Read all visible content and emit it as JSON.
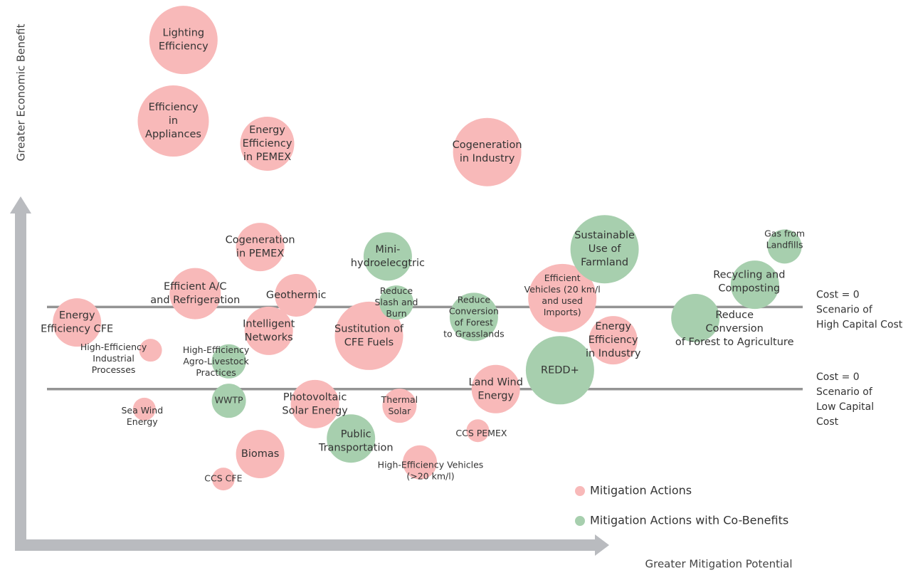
{
  "chart_data": {
    "type": "bubble",
    "x_label": "Greater Mitigation Potential",
    "y_label": "Greater Economic Benefit",
    "xlim": [
      0,
      100
    ],
    "ylim": [
      0,
      100
    ],
    "series": [
      {
        "name": "Mitigation Actions",
        "color": "#f8b9b9",
        "labels": [
          "Lighting\nEfficiency",
          "Efficiency\nin\nAppliances",
          "Energy\nEfficiency\nin PEMEX",
          "Cogeneration\nin Industry",
          "Cogeneration\nin PEMEX",
          "Efficient A/C\nand Refrigeration",
          "Geothermic",
          "Efficient\nVehicles (20 km/l\nand used\nImports)",
          "Energy\nEfficiency CFE",
          "Intelligent\nNetworks",
          "Sustitution of\nCFE Fuels",
          "Energy\nEfficiency\nin Industry",
          "High-Efficiency\nIndustrial\nProcesses",
          "Land Wind\nEnergy",
          "Photovoltaic\nSolar Energy",
          "Thermal\nSolar",
          "Sea Wind\nEnergy",
          "CCS PEMEX",
          "Biomas",
          "High-Efficiency Vehicles\n(>20 km/l)",
          "CCS CFE"
        ],
        "x": [
          19.8,
          18.5,
          30.5,
          58.6,
          29.6,
          21.3,
          34.2,
          68.2,
          6.2,
          30.7,
          43.5,
          74.7,
          15.6,
          59.7,
          36.6,
          47.4,
          14.8,
          57.4,
          29.6,
          50.0,
          24.9
        ],
        "y": [
          92.8,
          78.2,
          74.1,
          72.6,
          55.5,
          47.1,
          46.8,
          46.3,
          41.9,
          40.4,
          39.5,
          38.7,
          36.9,
          29.9,
          27.2,
          26.9,
          26.3,
          22.4,
          18.2,
          16.7,
          13.7
        ],
        "size": [
          12,
          12.5,
          9.5,
          12,
          8.5,
          9,
          7.5,
          12,
          8.5,
          8.5,
          12,
          8.5,
          4,
          8.5,
          8.5,
          6,
          4,
          4,
          8.5,
          6,
          4
        ]
      },
      {
        "name": "Mitigation Actions with Co-Benefits",
        "color": "#a7cfae",
        "labels": [
          "Mini-\nhydroelecgtric",
          "Sustainable\nUse of\nFarmland",
          "Gas from\nLandfills",
          "Recycling and\nComposting",
          "Reduce\nSlash and\nBurn",
          "Reduce\nConversion\nof Forest\nto Grasslands",
          "Reduce\nConversion\nof Forest to Agriculture",
          "High-Efficiency\nAgro-Livestock\nPractices",
          "REDD+",
          "WWTP",
          "Public\nTransportation"
        ],
        "x": [
          45.9,
          73.6,
          96.6,
          92.8,
          47.0,
          56.9,
          85.2,
          25.6,
          67.9,
          25.6,
          41.2
        ],
        "y": [
          53.8,
          55.1,
          55.6,
          48.7,
          45.5,
          42.9,
          42.7,
          34.9,
          33.3,
          27.8,
          21.0
        ],
        "size": [
          8.5,
          12,
          6,
          8.5,
          6,
          8.5,
          8.5,
          6,
          12,
          6,
          8.5
        ]
      }
    ],
    "reference_lines": [
      {
        "value": 44.7,
        "label": "Cost = 0\nScenario of\nHigh Capital Cost",
        "color": "#949494"
      },
      {
        "value": 29.9,
        "label": "Cost = 0\nScenario of\nLow Capital\nCost",
        "color": "#949494"
      }
    ]
  }
}
